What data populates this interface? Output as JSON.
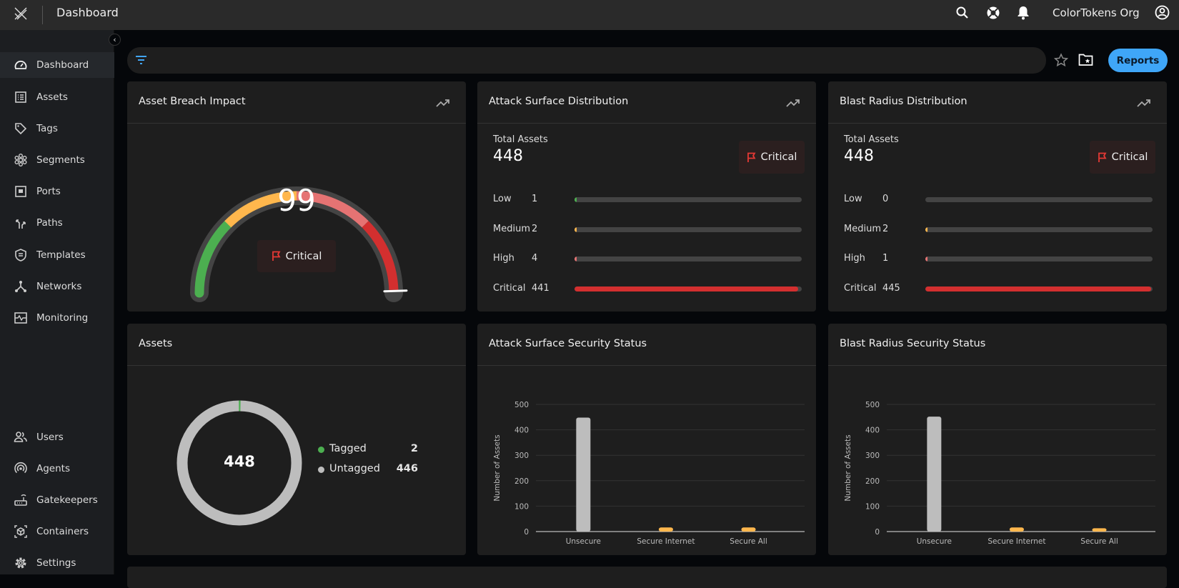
{
  "topbar": {
    "title": "Dashboard",
    "org": "ColorTokens Org",
    "icons": [
      "logo-icon",
      "search-icon",
      "support-icon",
      "bell-icon",
      "account-icon"
    ]
  },
  "sidebar": {
    "items": [
      {
        "label": "Dashboard",
        "icon": "gauge-icon",
        "active": true
      },
      {
        "label": "Assets",
        "icon": "list-icon"
      },
      {
        "label": "Tags",
        "icon": "tag-icon"
      },
      {
        "label": "Segments",
        "icon": "segments-icon"
      },
      {
        "label": "Ports",
        "icon": "port-icon"
      },
      {
        "label": "Paths",
        "icon": "paths-icon"
      },
      {
        "label": "Templates",
        "icon": "shield-icon"
      },
      {
        "label": "Networks",
        "icon": "network-icon"
      },
      {
        "label": "Monitoring",
        "icon": "monitor-icon"
      }
    ],
    "bottom_items": [
      {
        "label": "Users",
        "icon": "users-icon"
      },
      {
        "label": "Agents",
        "icon": "agents-icon"
      },
      {
        "label": "Gatekeepers",
        "icon": "router-icon"
      },
      {
        "label": "Containers",
        "icon": "container-icon"
      },
      {
        "label": "Settings",
        "icon": "settings-icon"
      }
    ]
  },
  "toolbar": {
    "reports_label": "Reports",
    "filter_value": ""
  },
  "cards": {
    "breach": {
      "title": "Asset Breach Impact",
      "value": "99",
      "value_num": 99,
      "badge": "Critical"
    },
    "attack_dist": {
      "title": "Attack Surface Distribution",
      "total_label": "Total Assets",
      "total": "448",
      "badge": "Critical",
      "rows": [
        {
          "label": "Low",
          "value": "1",
          "n": 1,
          "color": "#4caf50"
        },
        {
          "label": "Medium",
          "value": "2",
          "n": 2,
          "color": "#ffb74d"
        },
        {
          "label": "High",
          "value": "4",
          "n": 4,
          "color": "#e57373"
        },
        {
          "label": "Critical",
          "value": "441",
          "n": 441,
          "color": "#d32f2f"
        }
      ]
    },
    "blast_dist": {
      "title": "Blast Radius Distribution",
      "total_label": "Total Assets",
      "total": "448",
      "badge": "Critical",
      "rows": [
        {
          "label": "Low",
          "value": "0",
          "n": 0,
          "color": "#4caf50"
        },
        {
          "label": "Medium",
          "value": "2",
          "n": 2,
          "color": "#ffb74d"
        },
        {
          "label": "High",
          "value": "1",
          "n": 1,
          "color": "#e57373"
        },
        {
          "label": "Critical",
          "value": "445",
          "n": 445,
          "color": "#d32f2f"
        }
      ]
    },
    "assets": {
      "title": "Assets",
      "total": "448",
      "legend": [
        {
          "label": "Tagged",
          "value": "2",
          "n": 2,
          "color": "#4caf50"
        },
        {
          "label": "Untagged",
          "value": "446",
          "n": 446,
          "color": "#bdbdbd"
        }
      ]
    },
    "attack_status": {
      "title": "Attack Surface Security Status"
    },
    "blast_status": {
      "title": "Blast Radius Security Status"
    }
  },
  "chart_data": [
    {
      "type": "bar",
      "ylabel": "Number of Assets",
      "xlabel": "",
      "ylim": [
        0,
        500
      ],
      "yticks": [
        "0",
        "100",
        "200",
        "300",
        "400",
        "500"
      ],
      "categories": [
        "Unsecure",
        "Secure Internet",
        "Secure All"
      ],
      "values": [
        448,
        16,
        16
      ],
      "colors": [
        "#bdbdbd",
        "#ffb74d",
        "#ffb74d"
      ],
      "grid": true
    },
    {
      "type": "bar",
      "ylabel": "Number of Assets",
      "xlabel": "",
      "ylim": [
        0,
        500
      ],
      "yticks": [
        "0",
        "100",
        "200",
        "300",
        "400",
        "500"
      ],
      "categories": [
        "Unsecure",
        "Secure Internet",
        "Secure All"
      ],
      "values": [
        452,
        16,
        13
      ],
      "colors": [
        "#bdbdbd",
        "#ffb74d",
        "#ffb74d"
      ],
      "grid": true
    }
  ]
}
